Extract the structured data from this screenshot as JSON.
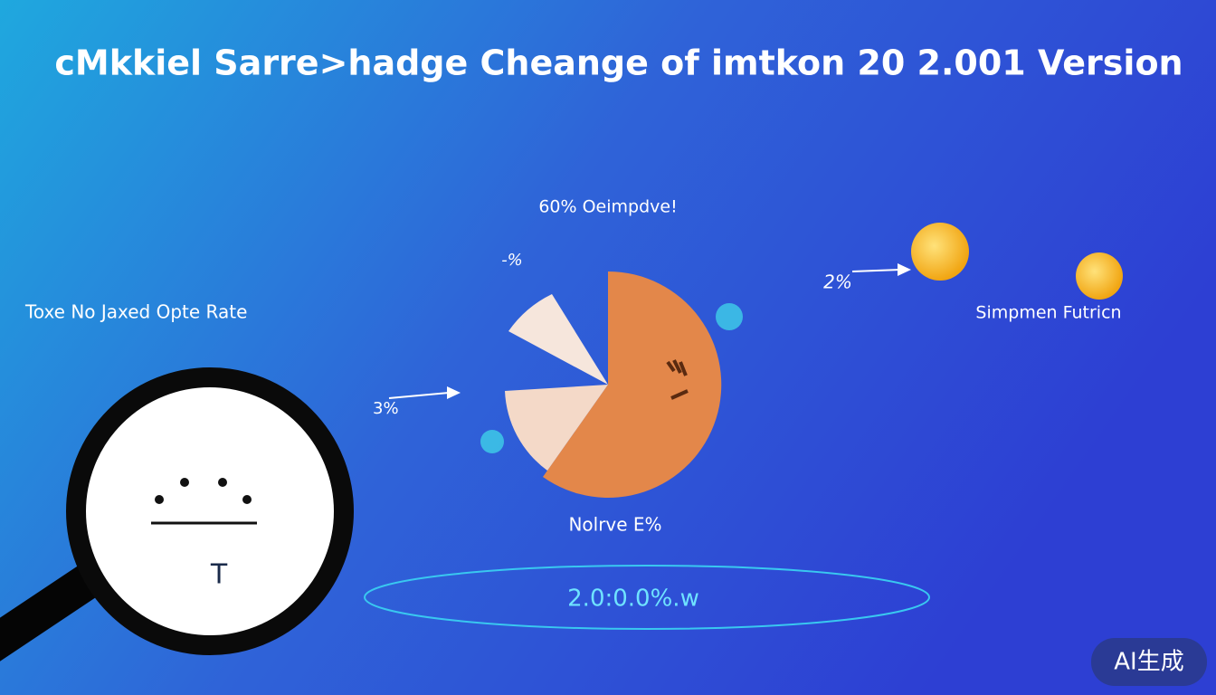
{
  "header": {
    "title": "cMkkiel Sarre>hadge Cheange of imtkon 20 2.001 Version"
  },
  "labels": {
    "top": "60% Oeimpdve!",
    "top_small": "-%",
    "left": "Toxe No Jaxed Opte Rate",
    "right_pct": "2%",
    "right": "Simpmen Futricn",
    "left_pct": "3%",
    "bottom": "Nolrve E%",
    "ring": "2.0:0.0%.w",
    "magnifier": "T"
  },
  "badge": "AI生成"
}
